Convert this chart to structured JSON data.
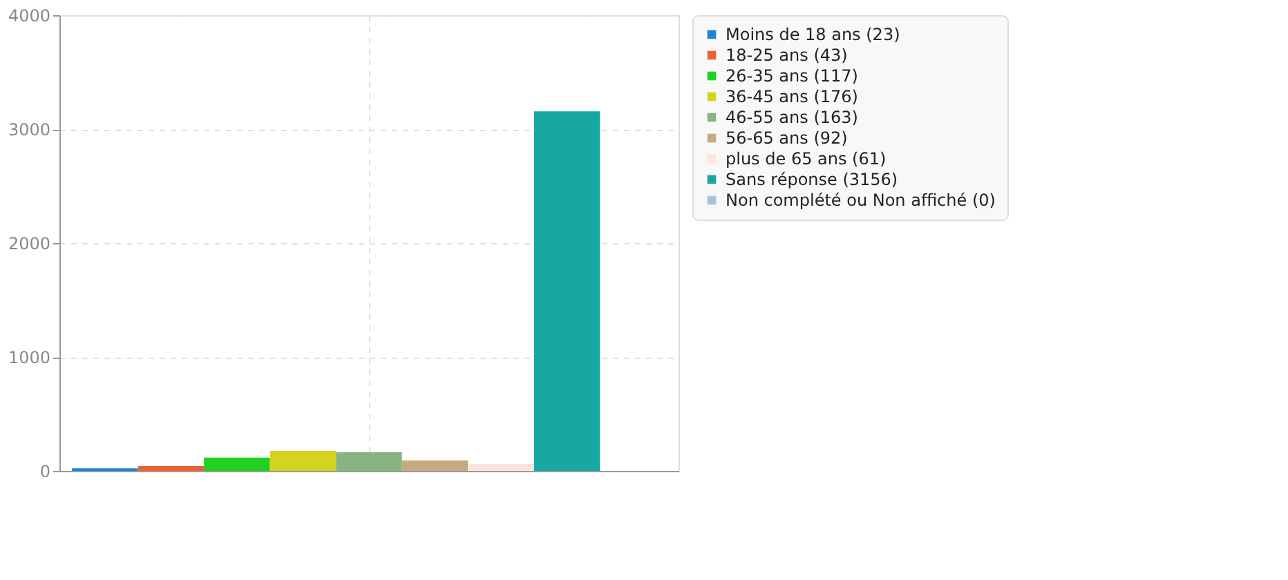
{
  "chart_data": {
    "type": "bar",
    "categories": [
      null
    ],
    "series": [
      {
        "name": "Moins de 18 ans (23)",
        "color": "#1f84d2",
        "values": [
          23
        ]
      },
      {
        "name": "18-25 ans (43)",
        "color": "#ec6235",
        "values": [
          43
        ]
      },
      {
        "name": "26-35 ans (117)",
        "color": "#22d022",
        "values": [
          117
        ]
      },
      {
        "name": "36-45 ans (176)",
        "color": "#d4d41e",
        "values": [
          176
        ]
      },
      {
        "name": "46-55 ans (163)",
        "color": "#89b482",
        "values": [
          163
        ]
      },
      {
        "name": "56-65 ans (92)",
        "color": "#c8aa80",
        "values": [
          92
        ]
      },
      {
        "name": "plus de 65 ans (61)",
        "color": "#fce6dc",
        "values": [
          61
        ]
      },
      {
        "name": "Sans réponse (3156)",
        "color": "#17a8a4",
        "values": [
          3156
        ]
      },
      {
        "name": "Non complété ou Non affiché (0)",
        "color": "#a8c0e0",
        "values": [
          0
        ]
      }
    ],
    "ylim": [
      0,
      4000
    ],
    "yticks": [
      0,
      1000,
      2000,
      3000,
      4000
    ],
    "grid": true,
    "legend": "right"
  }
}
